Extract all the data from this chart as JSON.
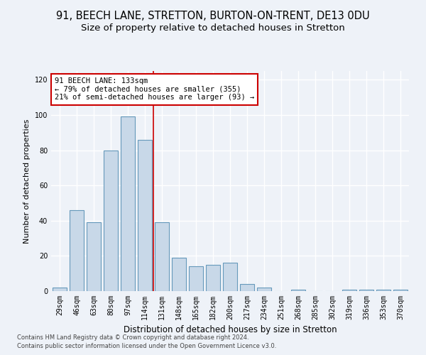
{
  "title1": "91, BEECH LANE, STRETTON, BURTON-ON-TRENT, DE13 0DU",
  "title2": "Size of property relative to detached houses in Stretton",
  "xlabel": "Distribution of detached houses by size in Stretton",
  "ylabel": "Number of detached properties",
  "categories": [
    "29sqm",
    "46sqm",
    "63sqm",
    "80sqm",
    "97sqm",
    "114sqm",
    "131sqm",
    "148sqm",
    "165sqm",
    "182sqm",
    "200sqm",
    "217sqm",
    "234sqm",
    "251sqm",
    "268sqm",
    "285sqm",
    "302sqm",
    "319sqm",
    "336sqm",
    "353sqm",
    "370sqm"
  ],
  "values": [
    2,
    46,
    39,
    80,
    99,
    86,
    39,
    19,
    14,
    15,
    16,
    4,
    2,
    0,
    1,
    0,
    0,
    1,
    1,
    1,
    1
  ],
  "bar_color": "#c8d8e8",
  "bar_edge_color": "#6699bb",
  "property_line_x": 5.5,
  "annotation_line1": "91 BEECH LANE: 133sqm",
  "annotation_line2": "← 79% of detached houses are smaller (355)",
  "annotation_line3": "21% of semi-detached houses are larger (93) →",
  "annotation_box_color": "#ffffff",
  "annotation_box_edge": "#cc0000",
  "vline_color": "#cc0000",
  "footer1": "Contains HM Land Registry data © Crown copyright and database right 2024.",
  "footer2": "Contains public sector information licensed under the Open Government Licence v3.0.",
  "ylim": [
    0,
    125
  ],
  "yticks": [
    0,
    20,
    40,
    60,
    80,
    100,
    120
  ],
  "background_color": "#eef2f8",
  "grid_color": "#ffffff",
  "title1_fontsize": 10.5,
  "title2_fontsize": 9.5,
  "xlabel_fontsize": 8.5,
  "ylabel_fontsize": 8,
  "tick_fontsize": 7,
  "annotation_fontsize": 7.5,
  "footer_fontsize": 6
}
